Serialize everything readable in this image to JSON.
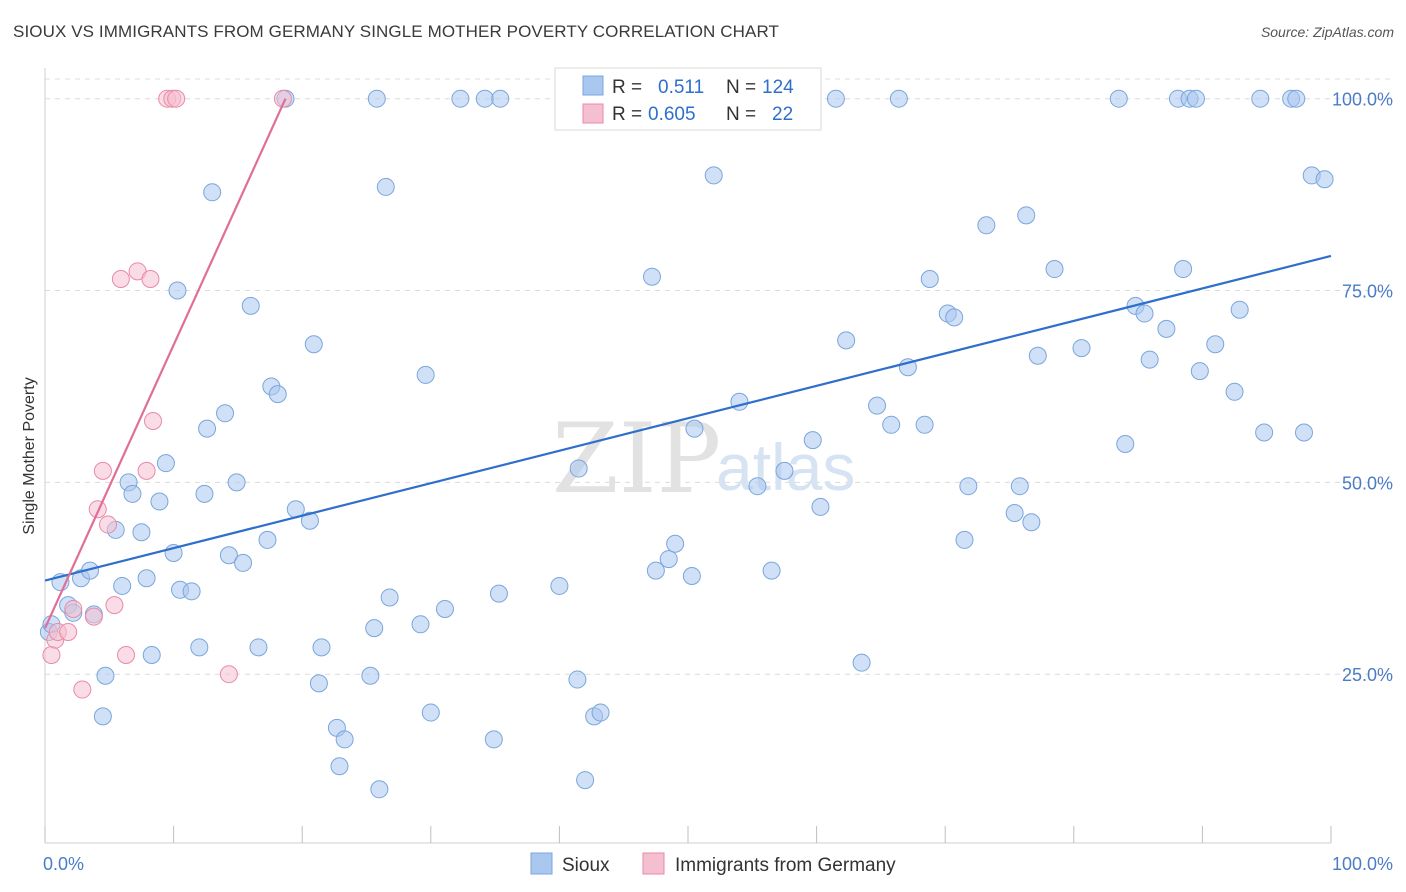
{
  "header": {
    "title": "SIOUX VS IMMIGRANTS FROM GERMANY SINGLE MOTHER POVERTY CORRELATION CHART",
    "source": "Source: ZipAtlas.com"
  },
  "watermark": {
    "zip": "ZIP",
    "atlas": "atlas"
  },
  "chart_data": {
    "type": "scatter",
    "title": "SIOUX VS IMMIGRANTS FROM GERMANY SINGLE MOTHER POVERTY CORRELATION CHART",
    "xlabel": "",
    "ylabel": "Single Mother Poverty",
    "xlim": [
      0,
      100
    ],
    "ylim": [
      3,
      104
    ],
    "x_tick_labels": [
      "0.0%",
      "100.0%"
    ],
    "y_ticks": [
      {
        "value": 25,
        "label": "25.0%"
      },
      {
        "value": 50,
        "label": "50.0%"
      },
      {
        "value": 75,
        "label": "75.0%"
      },
      {
        "value": 100,
        "label": "100.0%"
      }
    ],
    "legend": {
      "r_label": "R =",
      "n_label": "N =",
      "entries": [
        {
          "series": "Sioux",
          "r": "0.511",
          "n": "124"
        },
        {
          "series": "Immigrants from Germany",
          "r": "0.605",
          "n": "22"
        }
      ]
    },
    "series": [
      {
        "name": "Sioux",
        "color": "#a9c7ef",
        "stroke": "#7aa6dc",
        "trend_color": "#2f6fcc",
        "trend": {
          "x0": 0,
          "y0": 37.2,
          "x1": 100,
          "y1": 79.5
        },
        "points": [
          [
            0.3,
            30.5
          ],
          [
            0.5,
            31.5
          ],
          [
            1.2,
            37
          ],
          [
            1.8,
            34
          ],
          [
            2.2,
            33
          ],
          [
            2.8,
            37.5
          ],
          [
            3.5,
            38.5
          ],
          [
            3.8,
            32.8
          ],
          [
            4.5,
            19.5
          ],
          [
            4.7,
            24.8
          ],
          [
            5.5,
            43.8
          ],
          [
            6,
            36.5
          ],
          [
            6.5,
            50
          ],
          [
            6.8,
            48.5
          ],
          [
            7.5,
            43.5
          ],
          [
            7.9,
            37.5
          ],
          [
            8.3,
            27.5
          ],
          [
            8.9,
            47.5
          ],
          [
            9.4,
            52.5
          ],
          [
            10,
            40.8
          ],
          [
            10.3,
            75
          ],
          [
            10.5,
            36
          ],
          [
            11.4,
            35.8
          ],
          [
            12,
            28.5
          ],
          [
            12.4,
            48.5
          ],
          [
            12.6,
            57
          ],
          [
            13,
            87.8
          ],
          [
            14,
            59
          ],
          [
            14.3,
            40.5
          ],
          [
            14.9,
            50
          ],
          [
            15.4,
            39.5
          ],
          [
            16,
            73
          ],
          [
            16.6,
            28.5
          ],
          [
            17.3,
            42.5
          ],
          [
            17.6,
            62.5
          ],
          [
            18.1,
            61.5
          ],
          [
            18.7,
            100
          ],
          [
            19.5,
            46.5
          ],
          [
            20.6,
            45
          ],
          [
            20.9,
            68
          ],
          [
            21.3,
            23.8
          ],
          [
            21.5,
            28.5
          ],
          [
            22.9,
            13
          ],
          [
            22.7,
            18
          ],
          [
            23.3,
            16.5
          ],
          [
            25.3,
            24.8
          ],
          [
            25.6,
            31
          ],
          [
            25.8,
            100
          ],
          [
            26,
            10
          ],
          [
            26.5,
            88.5
          ],
          [
            26.8,
            35
          ],
          [
            29.2,
            31.5
          ],
          [
            29.6,
            64
          ],
          [
            30,
            20
          ],
          [
            31.1,
            33.5
          ],
          [
            32.3,
            100
          ],
          [
            34.2,
            100
          ],
          [
            34.9,
            16.5
          ],
          [
            35.3,
            35.5
          ],
          [
            35.4,
            100
          ],
          [
            40,
            36.5
          ],
          [
            41.4,
            24.3
          ],
          [
            42.7,
            19.5
          ],
          [
            43.2,
            20
          ],
          [
            42,
            11.2
          ],
          [
            41.5,
            51.8
          ],
          [
            45.6,
            100
          ],
          [
            47.2,
            76.8
          ],
          [
            47.5,
            38.5
          ],
          [
            48.5,
            40
          ],
          [
            49,
            42
          ],
          [
            50.5,
            57
          ],
          [
            50.3,
            37.8
          ],
          [
            52,
            90
          ],
          [
            53.2,
            100
          ],
          [
            54,
            60.5
          ],
          [
            55.4,
            49.5
          ],
          [
            56.5,
            100
          ],
          [
            56.5,
            38.5
          ],
          [
            57.5,
            51.5
          ],
          [
            59.7,
            55.5
          ],
          [
            60.3,
            46.8
          ],
          [
            61.5,
            100
          ],
          [
            62.3,
            68.5
          ],
          [
            63.5,
            26.5
          ],
          [
            64.7,
            60
          ],
          [
            65.8,
            57.5
          ],
          [
            66.4,
            100
          ],
          [
            67.1,
            65
          ],
          [
            68.4,
            57.5
          ],
          [
            68.8,
            76.5
          ],
          [
            70.2,
            72
          ],
          [
            70.7,
            71.5
          ],
          [
            71.5,
            42.5
          ],
          [
            71.8,
            49.5
          ],
          [
            73.2,
            83.5
          ],
          [
            75.8,
            49.5
          ],
          [
            75.4,
            46
          ],
          [
            76.3,
            84.8
          ],
          [
            76.7,
            44.8
          ],
          [
            77.2,
            66.5
          ],
          [
            78.5,
            77.8
          ],
          [
            80.6,
            67.5
          ],
          [
            83.5,
            100
          ],
          [
            84,
            55
          ],
          [
            84.8,
            73
          ],
          [
            85.5,
            72
          ],
          [
            85.9,
            66
          ],
          [
            87.2,
            70
          ],
          [
            88.1,
            100
          ],
          [
            88.5,
            77.8
          ],
          [
            89,
            100
          ],
          [
            89.5,
            100
          ],
          [
            89.8,
            64.5
          ],
          [
            91,
            68
          ],
          [
            92.5,
            61.8
          ],
          [
            92.9,
            72.5
          ],
          [
            94.5,
            100
          ],
          [
            94.8,
            56.5
          ],
          [
            96.9,
            100
          ],
          [
            97.3,
            100
          ],
          [
            97.9,
            56.5
          ],
          [
            98.5,
            90
          ],
          [
            99.5,
            89.5
          ]
        ]
      },
      {
        "name": "Immigrants from Germany",
        "color": "#f4bfcf",
        "stroke": "#e98aa8",
        "trend_color": "#e06e96",
        "trend": {
          "x0": 0,
          "y0": 31,
          "x1": 18.7,
          "y1": 100
        },
        "points": [
          [
            0.5,
            27.5
          ],
          [
            0.8,
            29.5
          ],
          [
            1,
            30.5
          ],
          [
            1.8,
            30.5
          ],
          [
            2.2,
            33.5
          ],
          [
            2.9,
            23
          ],
          [
            3.8,
            32.5
          ],
          [
            4.1,
            46.5
          ],
          [
            4.5,
            51.5
          ],
          [
            4.9,
            44.5
          ],
          [
            5.4,
            34
          ],
          [
            5.9,
            76.5
          ],
          [
            6.3,
            27.5
          ],
          [
            7.2,
            77.5
          ],
          [
            8.4,
            58
          ],
          [
            8.2,
            76.5
          ],
          [
            7.9,
            51.5
          ],
          [
            9.5,
            100
          ],
          [
            9.9,
            100
          ],
          [
            10.2,
            100
          ],
          [
            14.3,
            25
          ],
          [
            18.5,
            100
          ]
        ]
      }
    ]
  }
}
